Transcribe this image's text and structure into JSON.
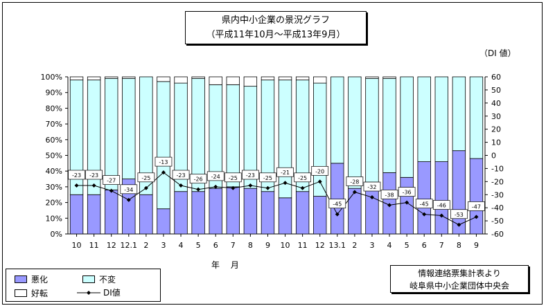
{
  "title": {
    "line1": "県内中小企業の景況グラフ",
    "line2": "（平成11年10月～平成13年9月）"
  },
  "di_unit_label": "（DI 値）",
  "xlabel": "年 月",
  "source": {
    "line1": "情報連絡票集計表より",
    "line2": "岐阜県中小企業団体中央会"
  },
  "legend": {
    "bad": "悪化",
    "same": "不変",
    "good": "好転",
    "di": "DI値"
  },
  "colors": {
    "bad": "#9999ff",
    "same": "#ccffff",
    "good": "#ffffff",
    "line": "#000000"
  },
  "chart_data": {
    "type": "bar",
    "stacked": true,
    "categories": [
      "10",
      "11",
      "12",
      "12.1",
      "2",
      "3",
      "4",
      "5",
      "6",
      "7",
      "8",
      "9",
      "10",
      "11",
      "12",
      "13.1",
      "2",
      "3",
      "4",
      "5",
      "6",
      "7",
      "8",
      "9"
    ],
    "series": [
      {
        "name": "悪化",
        "values": [
          25,
          25,
          28,
          35,
          25,
          16,
          27,
          27,
          29,
          30,
          29,
          27,
          23,
          27,
          24,
          45,
          29,
          33,
          39,
          36,
          46,
          46,
          53,
          48
        ]
      },
      {
        "name": "不変",
        "values": [
          73,
          73,
          71,
          64,
          75,
          81,
          69,
          72,
          66,
          65,
          65,
          71,
          75,
          71,
          72,
          55,
          71,
          66,
          60,
          64,
          54,
          54,
          47,
          52
        ]
      },
      {
        "name": "好転",
        "values": [
          2,
          2,
          1,
          1,
          0,
          3,
          4,
          1,
          5,
          5,
          6,
          2,
          2,
          2,
          4,
          0,
          0,
          1,
          1,
          0,
          0,
          0,
          0,
          0
        ]
      },
      {
        "name": "DI値",
        "axis": "right",
        "values": [
          -23,
          -23,
          -27,
          -34,
          -25,
          -13,
          -23,
          -26,
          -24,
          -25,
          -23,
          -25,
          -21,
          -25,
          -20,
          -45,
          -28,
          -32,
          -38,
          -36,
          -45,
          -46,
          -53,
          -47
        ]
      }
    ],
    "y_left": {
      "ticks": [
        "0%",
        "10%",
        "20%",
        "30%",
        "40%",
        "50%",
        "60%",
        "70%",
        "80%",
        "90%",
        "100%"
      ],
      "range": [
        0,
        100
      ]
    },
    "y_right": {
      "ticks": [
        -60,
        -50,
        -40,
        -30,
        -20,
        -10,
        0,
        10,
        20,
        30,
        40,
        50,
        60
      ],
      "range": [
        -60,
        60
      ]
    },
    "grid": false,
    "legend_position": "bottom-left"
  }
}
